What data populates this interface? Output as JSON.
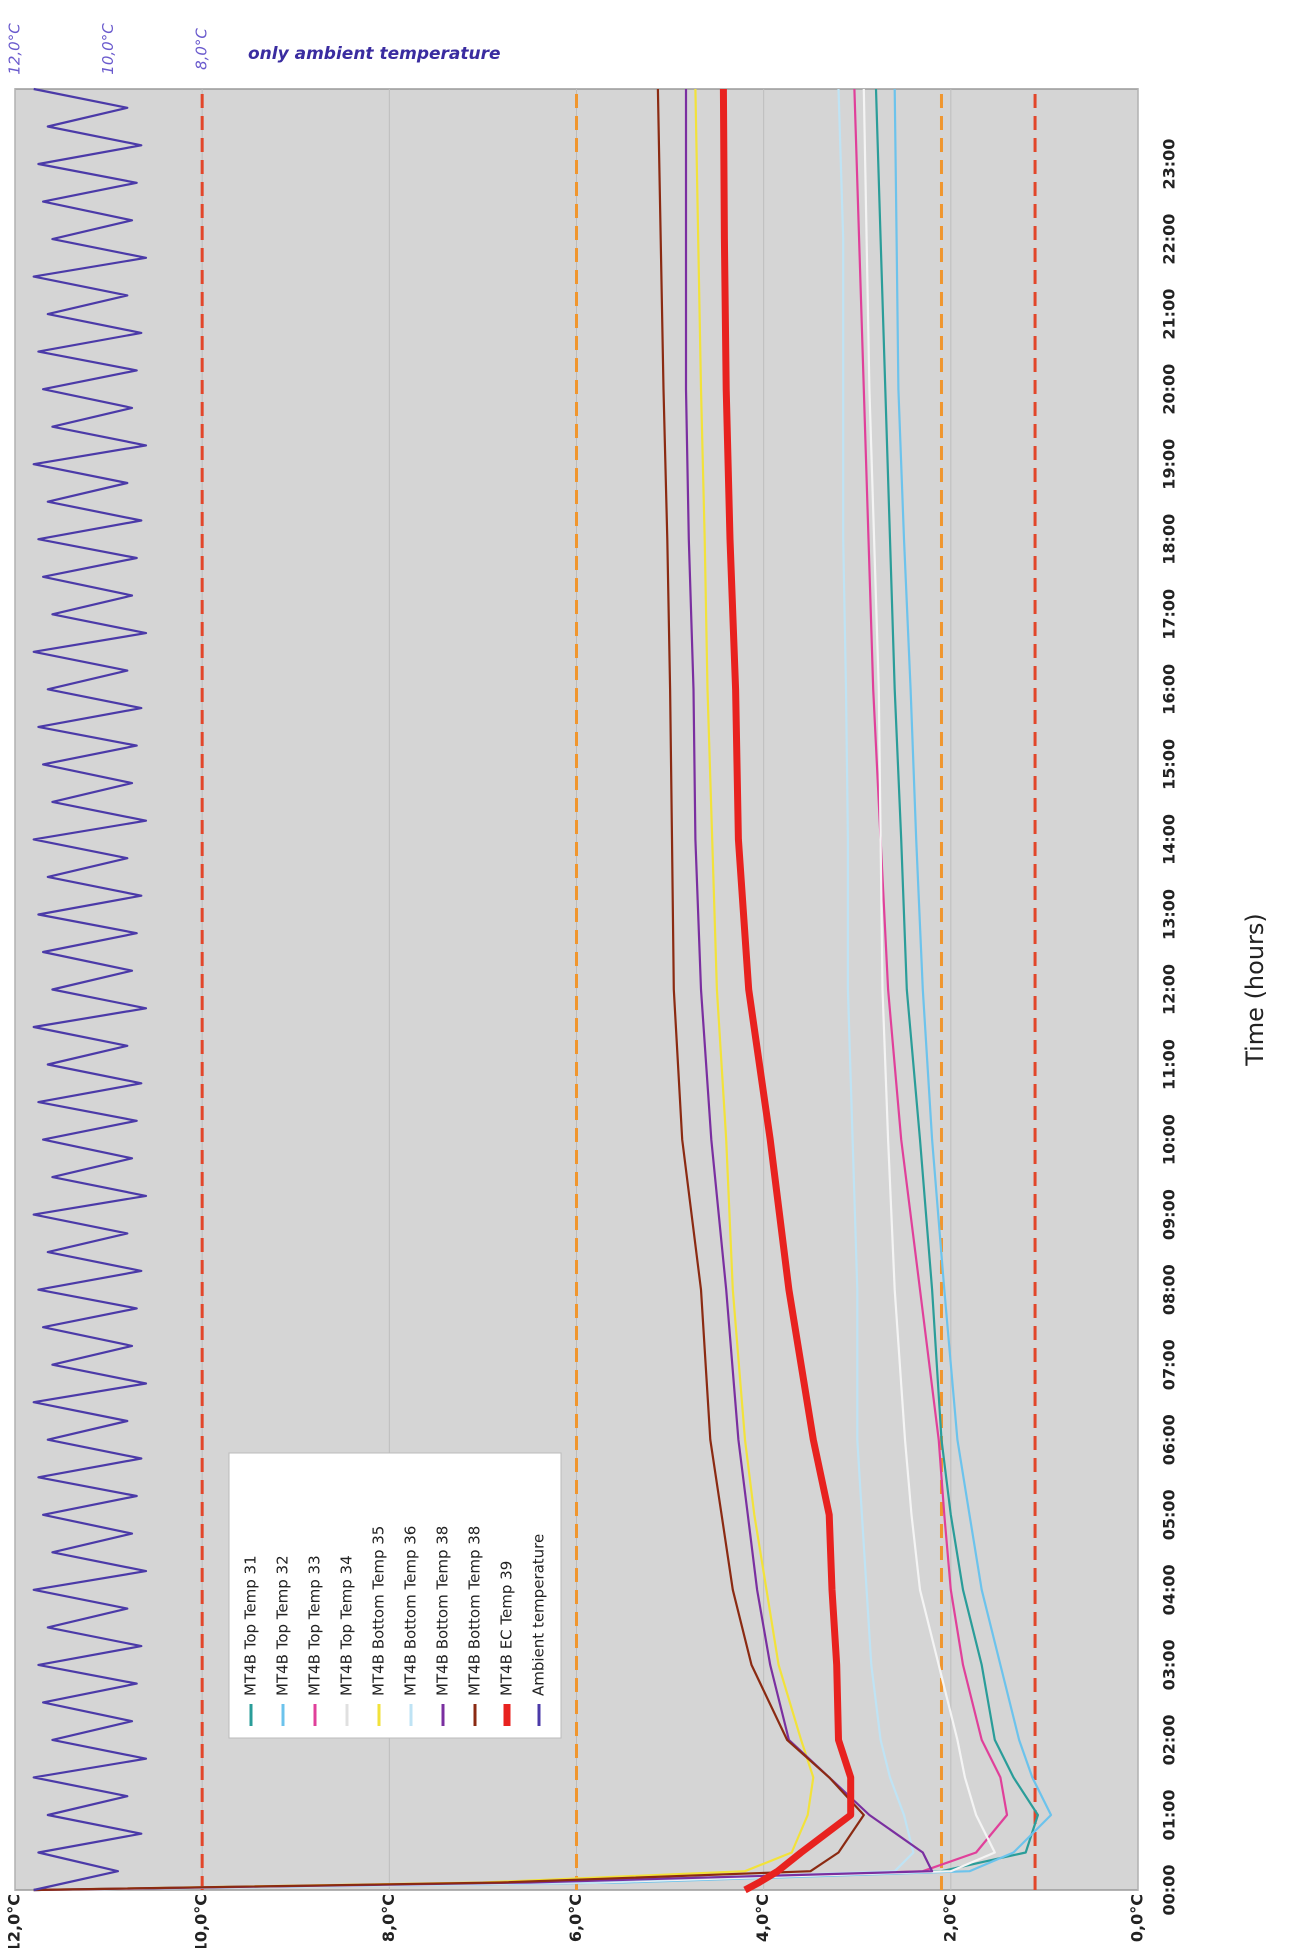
{
  "chart_data": {
    "type": "line",
    "xlabel": "Time (hours)",
    "annotation": "only ambient temperature",
    "xlim": [
      0,
      24
    ],
    "xticks": [
      {
        "value": 0,
        "label": "00:00"
      },
      {
        "value": 1,
        "label": "01:00"
      },
      {
        "value": 2,
        "label": "02:00"
      },
      {
        "value": 3,
        "label": "03:00"
      },
      {
        "value": 4,
        "label": "04:00"
      },
      {
        "value": 5,
        "label": "05:00"
      },
      {
        "value": 6,
        "label": "06:00"
      },
      {
        "value": 7,
        "label": "07:00"
      },
      {
        "value": 8,
        "label": "08:00"
      },
      {
        "value": 9,
        "label": "09:00"
      },
      {
        "value": 10,
        "label": "10:00"
      },
      {
        "value": 11,
        "label": "11:00"
      },
      {
        "value": 12,
        "label": "12:00"
      },
      {
        "value": 13,
        "label": "13:00"
      },
      {
        "value": 14,
        "label": "14:00"
      },
      {
        "value": 15,
        "label": "15:00"
      },
      {
        "value": 16,
        "label": "16:00"
      },
      {
        "value": 17,
        "label": "17:00"
      },
      {
        "value": 18,
        "label": "18:00"
      },
      {
        "value": 19,
        "label": "19:00"
      },
      {
        "value": 20,
        "label": "20:00"
      },
      {
        "value": 21,
        "label": "21:00"
      },
      {
        "value": 22,
        "label": "22:00"
      },
      {
        "value": 23,
        "label": "23:00"
      }
    ],
    "ylim": [
      0,
      12
    ],
    "yticks": [
      {
        "value": 0,
        "label": "0,0°C"
      },
      {
        "value": 2,
        "label": "2,0°C"
      },
      {
        "value": 4,
        "label": "4,0°C"
      },
      {
        "value": 6,
        "label": "6,0°C"
      },
      {
        "value": 8,
        "label": "8,0°C"
      },
      {
        "value": 10,
        "label": "10,0°C"
      },
      {
        "value": 12,
        "label": "12,0°C"
      }
    ],
    "y2lim": [
      -12,
      12
    ],
    "y2ticks": [
      {
        "value": 12,
        "label": "12,0°C"
      },
      {
        "value": 10,
        "label": "10,0°C"
      },
      {
        "value": 8,
        "label": "8,0°C"
      }
    ],
    "grid": true,
    "rotated": true,
    "legend": "upper left",
    "reference_lines": [
      {
        "value": 10,
        "color": "#e2462a"
      },
      {
        "value": 6,
        "color": "#f0962e"
      },
      {
        "value": 2.1,
        "color": "#f0962e"
      },
      {
        "value": 1.1,
        "color": "#e2462a"
      }
    ],
    "x": [
      0,
      0.1,
      0.25,
      0.5,
      1,
      1.5,
      2,
      3,
      4,
      5,
      6,
      8,
      10,
      12,
      14,
      16,
      18,
      20,
      22,
      24
    ],
    "series": [
      {
        "name": "MT4B Top Temp 31",
        "color": "#2a9d99",
        "values": [
          11.8,
          6.5,
          2.1,
          1.2,
          1.07,
          1.33,
          1.53,
          1.67,
          1.87,
          2.0,
          2.1,
          2.2,
          2.33,
          2.47,
          2.53,
          2.6,
          2.65,
          2.7,
          2.75,
          2.8
        ]
      },
      {
        "name": "MT4B Top Temp 32",
        "color": "#6cc3ec",
        "values": [
          11.8,
          5.5,
          1.8,
          1.33,
          0.93,
          1.13,
          1.27,
          1.47,
          1.67,
          1.8,
          1.93,
          2.07,
          2.2,
          2.3,
          2.37,
          2.43,
          2.5,
          2.56,
          2.58,
          2.6
        ]
      },
      {
        "name": "MT4B Top Temp 33",
        "color": "#e0409a",
        "values": [
          11.8,
          6,
          2.3,
          1.73,
          1.4,
          1.47,
          1.67,
          1.87,
          2.0,
          2.07,
          2.13,
          2.33,
          2.53,
          2.67,
          2.75,
          2.83,
          2.88,
          2.93,
          2.98,
          3.03
        ]
      },
      {
        "name": "MT4B Top Temp 34",
        "color": "#f4f4f4",
        "values": [
          11.8,
          5.8,
          2.0,
          1.53,
          1.73,
          1.85,
          1.93,
          2.13,
          2.33,
          2.42,
          2.49,
          2.6,
          2.67,
          2.73,
          2.75,
          2.77,
          2.82,
          2.87,
          2.9,
          2.93
        ]
      },
      {
        "name": "MT4B Bottom Temp 35",
        "color": "#f2e23a",
        "values": [
          11.8,
          7,
          4.2,
          3.7,
          3.53,
          3.47,
          3.6,
          3.84,
          3.97,
          4.1,
          4.2,
          4.33,
          4.4,
          4.5,
          4.55,
          4.6,
          4.63,
          4.67,
          4.7,
          4.73
        ]
      },
      {
        "name": "MT4B Bottom Temp 36",
        "color": "#bfe3f4",
        "values": [
          11.8,
          6,
          2.6,
          2.4,
          2.5,
          2.65,
          2.75,
          2.85,
          2.9,
          2.95,
          3.0,
          3.0,
          3.05,
          3.1,
          3.1,
          3.12,
          3.15,
          3.15,
          3.15,
          3.2
        ]
      },
      {
        "name": "MT4B Bottom Temp 38",
        "color": "#7a2fa0",
        "values": [
          11.8,
          6.5,
          2.2,
          2.3,
          2.87,
          3.3,
          3.73,
          3.93,
          4.07,
          4.17,
          4.27,
          4.4,
          4.56,
          4.67,
          4.73,
          4.75,
          4.8,
          4.83,
          4.83,
          4.83
        ]
      },
      {
        "name": "MT4B Bottom Temp 38",
        "color": "#8b2a12",
        "values": [
          11.8,
          6.8,
          3.5,
          3.2,
          2.93,
          3.3,
          3.75,
          4.13,
          4.33,
          4.45,
          4.57,
          4.67,
          4.87,
          4.96,
          4.98,
          5.0,
          5.03,
          5.07,
          5.1,
          5.13
        ]
      },
      {
        "name": "MT4B EC Temp 39",
        "color": "#e8221f",
        "linewidth": 7,
        "values": [
          4.2,
          4.05,
          3.85,
          3.6,
          3.07,
          3.07,
          3.2,
          3.22,
          3.27,
          3.3,
          3.47,
          3.73,
          3.93,
          4.16,
          4.27,
          4.3,
          4.36,
          4.4,
          4.42,
          4.43
        ]
      },
      {
        "name": "Ambient temperature",
        "color": "#4b3aa8",
        "axis": "y2",
        "x": [
          0,
          0.25,
          0.5,
          0.75,
          1,
          1.25,
          1.5,
          1.75,
          2,
          2.25,
          2.5,
          2.75,
          3,
          3.25,
          3.5,
          3.75,
          4,
          4.25,
          4.5,
          4.75,
          5,
          5.25,
          5.5,
          5.75,
          6,
          6.25,
          6.5,
          6.75,
          7,
          7.25,
          7.5,
          7.75,
          8,
          8.25,
          8.5,
          8.75,
          9,
          9.25,
          9.5,
          9.75,
          10,
          10.25,
          10.5,
          10.75,
          11,
          11.25,
          11.5,
          11.75,
          12,
          12.25,
          12.5,
          12.75,
          13,
          13.25,
          13.5,
          13.75,
          14,
          14.25,
          14.5,
          14.75,
          15,
          15.25,
          15.5,
          15.75,
          16,
          16.25,
          16.5,
          16.75,
          17,
          17.25,
          17.5,
          17.75,
          18,
          18.25,
          18.5,
          18.75,
          19,
          19.25,
          19.5,
          19.75,
          20,
          20.25,
          20.5,
          20.75,
          21,
          21.25,
          21.5,
          21.75,
          22,
          22.25,
          22.5,
          22.75,
          23,
          23.25,
          23.5,
          23.75,
          24
        ],
        "values": [
          11.6,
          9.8,
          11.5,
          9.3,
          11.3,
          9.6,
          11.6,
          9.2,
          11.2,
          9.5,
          11.4,
          9.4,
          11.5,
          9.3,
          11.3,
          9.6,
          11.6,
          9.2,
          11.2,
          9.5,
          11.4,
          9.4,
          11.5,
          9.3,
          11.3,
          9.6,
          11.6,
          9.2,
          11.2,
          9.5,
          11.4,
          9.4,
          11.5,
          9.3,
          11.3,
          9.6,
          11.6,
          9.2,
          11.2,
          9.5,
          11.4,
          9.4,
          11.5,
          9.3,
          11.3,
          9.6,
          11.6,
          9.2,
          11.2,
          9.5,
          11.4,
          9.4,
          11.5,
          9.3,
          11.3,
          9.6,
          11.6,
          9.2,
          11.2,
          9.5,
          11.4,
          9.4,
          11.5,
          9.3,
          11.3,
          9.6,
          11.6,
          9.2,
          11.2,
          9.5,
          11.4,
          9.4,
          11.5,
          9.3,
          11.3,
          9.6,
          11.6,
          9.2,
          11.2,
          9.5,
          11.4,
          9.4,
          11.5,
          9.3,
          11.3,
          9.6,
          11.6,
          9.2,
          11.2,
          9.5,
          11.4,
          9.4,
          11.5,
          9.3,
          11.3,
          9.6,
          11.6
        ]
      }
    ]
  }
}
